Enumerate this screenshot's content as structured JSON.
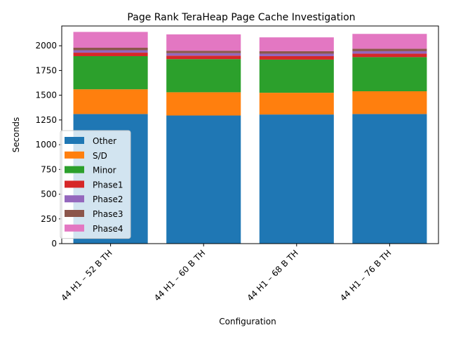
{
  "chart_data": {
    "type": "bar",
    "stacked": true,
    "title": "Page Rank TeraHeap Page Cache Investigation",
    "xlabel": "Configuration",
    "ylabel": "Seconds",
    "ylim": [
      0,
      2200
    ],
    "yticks": [
      0,
      250,
      500,
      750,
      1000,
      1250,
      1500,
      1750,
      2000
    ],
    "categories": [
      "44 H1 – 52 B TH",
      "44 H1 – 60 B TH",
      "44 H1 – 68 B TH",
      "44 H1 – 76 B TH"
    ],
    "series": [
      {
        "name": "Other",
        "color": "#1f77b4",
        "values": [
          1310,
          1295,
          1305,
          1310
        ]
      },
      {
        "name": "S/D",
        "color": "#ff7f0e",
        "values": [
          250,
          235,
          220,
          230
        ]
      },
      {
        "name": "Minor",
        "color": "#2ca02c",
        "values": [
          335,
          335,
          335,
          345
        ]
      },
      {
        "name": "Phase1",
        "color": "#d62728",
        "values": [
          35,
          35,
          35,
          35
        ]
      },
      {
        "name": "Phase2",
        "color": "#9467bd",
        "values": [
          25,
          25,
          25,
          25
        ]
      },
      {
        "name": "Phase3",
        "color": "#8c564b",
        "values": [
          25,
          25,
          25,
          25
        ]
      },
      {
        "name": "Phase4",
        "color": "#e377c2",
        "values": [
          160,
          165,
          140,
          150
        ]
      }
    ],
    "legend_position": "lower-left",
    "grid": false
  }
}
